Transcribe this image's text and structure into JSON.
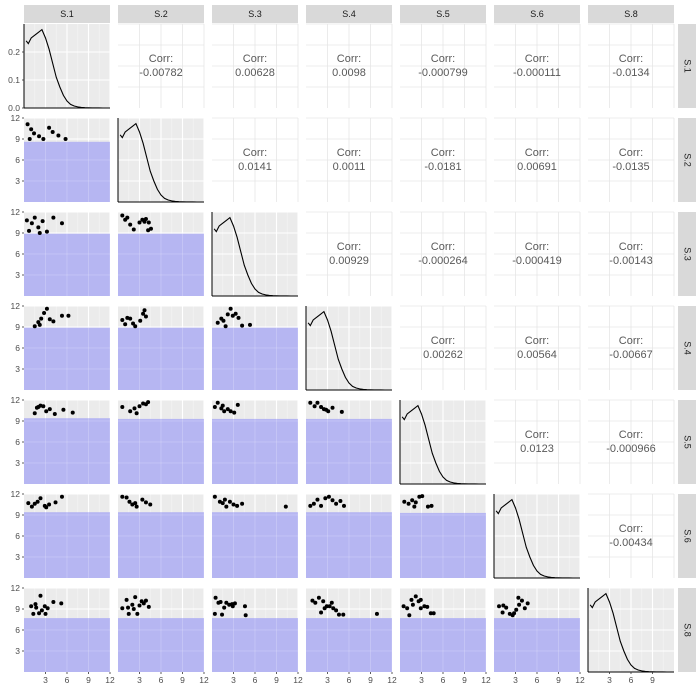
{
  "chart_data": {
    "type": "pairs",
    "variables": [
      "S.1",
      "S.2",
      "S.3",
      "S.4",
      "S.5",
      "S.6",
      "S.8"
    ],
    "density_y_ticks": [
      0.0,
      0.1,
      0.2
    ],
    "density_y_tick_labels": [
      "0.0",
      "0.1",
      "0.2"
    ],
    "scatter_y_ticks": [
      3,
      6,
      9,
      12
    ],
    "scatter_y_tick_labels": [
      "3",
      "6",
      "9",
      "12"
    ],
    "x_ticks": [
      3,
      6,
      9,
      12
    ],
    "x_tick_labels": [
      "3",
      "6",
      "9",
      "12"
    ],
    "last_col_x_ticks": [
      3,
      6,
      9
    ],
    "last_col_x_tick_labels": [
      "3",
      "6",
      "9"
    ],
    "xlim": [
      0,
      12
    ],
    "ylim": [
      0,
      12
    ],
    "corr_label": "Corr:",
    "correlations": [
      {
        "row": 0,
        "col": 1,
        "value": "-0.00782"
      },
      {
        "row": 0,
        "col": 2,
        "value": "0.00628"
      },
      {
        "row": 0,
        "col": 3,
        "value": "0.0098"
      },
      {
        "row": 0,
        "col": 4,
        "value": "-0.000799"
      },
      {
        "row": 0,
        "col": 5,
        "value": "-0.000111"
      },
      {
        "row": 0,
        "col": 6,
        "value": "-0.0134"
      },
      {
        "row": 1,
        "col": 2,
        "value": "0.0141"
      },
      {
        "row": 1,
        "col": 3,
        "value": "0.0011"
      },
      {
        "row": 1,
        "col": 4,
        "value": "-0.0181"
      },
      {
        "row": 1,
        "col": 5,
        "value": "0.00691"
      },
      {
        "row": 1,
        "col": 6,
        "value": "-0.0135"
      },
      {
        "row": 2,
        "col": 3,
        "value": "0.00929"
      },
      {
        "row": 2,
        "col": 4,
        "value": "-0.000264"
      },
      {
        "row": 2,
        "col": 5,
        "value": "-0.000419"
      },
      {
        "row": 2,
        "col": 6,
        "value": "-0.00143"
      },
      {
        "row": 3,
        "col": 4,
        "value": "0.00262"
      },
      {
        "row": 3,
        "col": 5,
        "value": "0.00564"
      },
      {
        "row": 3,
        "col": 6,
        "value": "-0.00667"
      },
      {
        "row": 4,
        "col": 5,
        "value": "0.0123"
      },
      {
        "row": 4,
        "col": 6,
        "value": "-0.000966"
      },
      {
        "row": 5,
        "col": 6,
        "value": "-0.00434"
      }
    ],
    "density_curve": {
      "x": [
        0.3,
        0.6,
        1.0,
        1.5,
        2.0,
        2.5,
        3.0,
        3.5,
        4.0,
        4.5,
        5.0,
        5.5,
        6.0,
        6.5,
        7.0,
        7.5,
        8.0,
        8.5,
        9.0,
        9.5,
        10.0,
        10.5,
        11.0
      ],
      "y": [
        0.24,
        0.23,
        0.25,
        0.26,
        0.27,
        0.28,
        0.25,
        0.21,
        0.16,
        0.11,
        0.075,
        0.045,
        0.025,
        0.013,
        0.007,
        0.004,
        0.002,
        0.001,
        0.0006,
        0.0003,
        0.0002,
        0.0001,
        0.0
      ],
      "ylim": [
        0,
        0.3
      ]
    },
    "fill_color": "#b3b3f2",
    "panel_bg": "#ebebeb",
    "strip_bg": "#d9d9d9",
    "point_color": "#000000",
    "scatter_panels": [
      {
        "row": 1,
        "col": 0,
        "fill_level": 8.6,
        "points": [
          [
            0.5,
            11.1
          ],
          [
            1.0,
            10.4
          ],
          [
            1.4,
            9.8
          ],
          [
            2.1,
            9.4
          ],
          [
            0.8,
            9.0
          ],
          [
            2.7,
            9.0
          ],
          [
            4.0,
            10.0
          ],
          [
            4.8,
            9.5
          ],
          [
            5.8,
            9.0
          ],
          [
            3.5,
            10.6
          ]
        ]
      },
      {
        "row": 2,
        "col": 0,
        "fill_level": 8.9,
        "points": [
          [
            0.4,
            10.8
          ],
          [
            1.1,
            10.4
          ],
          [
            1.5,
            11.2
          ],
          [
            2.0,
            9.8
          ],
          [
            2.6,
            10.7
          ],
          [
            3.2,
            9.2
          ],
          [
            4.1,
            11.2
          ],
          [
            5.3,
            10.4
          ],
          [
            2.2,
            9.0
          ],
          [
            0.7,
            9.3
          ]
        ]
      },
      {
        "row": 3,
        "col": 0,
        "fill_level": 8.9,
        "points": [
          [
            1.5,
            9.1
          ],
          [
            2.0,
            9.7
          ],
          [
            2.4,
            10.2
          ],
          [
            2.8,
            11.0
          ],
          [
            3.2,
            11.6
          ],
          [
            3.6,
            10.1
          ],
          [
            4.1,
            9.8
          ],
          [
            5.3,
            10.6
          ],
          [
            6.2,
            10.6
          ],
          [
            2.2,
            9.3
          ]
        ]
      },
      {
        "row": 4,
        "col": 0,
        "fill_level": 9.4,
        "points": [
          [
            1.5,
            10.1
          ],
          [
            1.8,
            10.9
          ],
          [
            2.3,
            11.2
          ],
          [
            2.7,
            11.1
          ],
          [
            3.1,
            10.4
          ],
          [
            4.3,
            10.0
          ],
          [
            5.5,
            10.6
          ],
          [
            6.8,
            10.2
          ],
          [
            3.6,
            10.7
          ],
          [
            2.0,
            11.0
          ]
        ]
      },
      {
        "row": 5,
        "col": 0,
        "fill_level": 9.4,
        "points": [
          [
            0.6,
            10.7
          ],
          [
            1.1,
            10.2
          ],
          [
            1.5,
            10.6
          ],
          [
            2.3,
            11.4
          ],
          [
            2.9,
            10.3
          ],
          [
            3.5,
            10.5
          ],
          [
            4.4,
            10.8
          ],
          [
            5.3,
            11.6
          ],
          [
            1.9,
            10.9
          ],
          [
            3.1,
            10.1
          ]
        ]
      },
      {
        "row": 6,
        "col": 0,
        "fill_level": 7.7,
        "points": [
          [
            1.0,
            9.4
          ],
          [
            1.3,
            8.3
          ],
          [
            1.7,
            9.2
          ],
          [
            2.1,
            8.4
          ],
          [
            2.5,
            8.8
          ],
          [
            2.9,
            9.4
          ],
          [
            3.3,
            9.1
          ],
          [
            4.1,
            10.0
          ],
          [
            5.2,
            9.8
          ],
          [
            2.3,
            10.9
          ],
          [
            1.6,
            9.7
          ],
          [
            3.0,
            8.3
          ]
        ]
      },
      {
        "row": 2,
        "col": 1,
        "fill_level": 8.9,
        "points": [
          [
            0.6,
            11.5
          ],
          [
            1.0,
            10.9
          ],
          [
            1.3,
            11.2
          ],
          [
            1.7,
            10.2
          ],
          [
            2.2,
            9.5
          ],
          [
            3.0,
            10.5
          ],
          [
            3.4,
            10.9
          ],
          [
            3.9,
            11.0
          ],
          [
            4.3,
            10.5
          ],
          [
            4.6,
            9.6
          ],
          [
            4.2,
            9.4
          ],
          [
            3.7,
            10.6
          ]
        ]
      },
      {
        "row": 3,
        "col": 1,
        "fill_level": 8.9,
        "points": [
          [
            0.6,
            10.0
          ],
          [
            1.0,
            9.4
          ],
          [
            1.3,
            10.3
          ],
          [
            1.7,
            10.2
          ],
          [
            2.4,
            9.1
          ],
          [
            3.1,
            9.9
          ],
          [
            3.5,
            10.9
          ],
          [
            3.7,
            11.4
          ],
          [
            3.9,
            10.5
          ],
          [
            2.1,
            9.5
          ]
        ]
      },
      {
        "row": 4,
        "col": 1,
        "fill_level": 9.3,
        "points": [
          [
            0.6,
            11.0
          ],
          [
            1.7,
            10.4
          ],
          [
            2.3,
            10.8
          ],
          [
            3.0,
            11.1
          ],
          [
            3.5,
            11.5
          ],
          [
            3.9,
            11.4
          ],
          [
            2.6,
            10.1
          ],
          [
            4.2,
            11.7
          ]
        ]
      },
      {
        "row": 5,
        "col": 1,
        "fill_level": 9.4,
        "points": [
          [
            0.6,
            11.6
          ],
          [
            1.2,
            11.5
          ],
          [
            1.6,
            10.9
          ],
          [
            2.0,
            10.5
          ],
          [
            2.6,
            10.2
          ],
          [
            3.4,
            11.2
          ],
          [
            3.9,
            10.8
          ],
          [
            4.5,
            10.5
          ],
          [
            2.4,
            10.7
          ]
        ]
      },
      {
        "row": 6,
        "col": 1,
        "fill_level": 7.7,
        "points": [
          [
            0.6,
            9.1
          ],
          [
            1.2,
            10.3
          ],
          [
            1.5,
            8.3
          ],
          [
            2.0,
            9.6
          ],
          [
            2.4,
            10.7
          ],
          [
            2.7,
            8.3
          ],
          [
            3.0,
            9.5
          ],
          [
            3.3,
            10.1
          ],
          [
            3.6,
            9.8
          ],
          [
            3.9,
            10.2
          ],
          [
            4.3,
            9.3
          ],
          [
            2.2,
            9.0
          ],
          [
            1.4,
            9.2
          ]
        ]
      },
      {
        "row": 3,
        "col": 2,
        "fill_level": 8.9,
        "points": [
          [
            0.8,
            9.6
          ],
          [
            1.3,
            10.2
          ],
          [
            1.6,
            9.9
          ],
          [
            2.2,
            10.8
          ],
          [
            2.6,
            11.6
          ],
          [
            2.9,
            10.6
          ],
          [
            3.3,
            10.9
          ],
          [
            3.7,
            10.3
          ],
          [
            4.2,
            9.2
          ],
          [
            5.3,
            9.3
          ],
          [
            1.9,
            9.1
          ]
        ]
      },
      {
        "row": 4,
        "col": 2,
        "fill_level": 9.3,
        "points": [
          [
            0.4,
            11.0
          ],
          [
            0.8,
            11.6
          ],
          [
            1.3,
            10.8
          ],
          [
            1.7,
            10.4
          ],
          [
            2.2,
            10.7
          ],
          [
            2.6,
            10.4
          ],
          [
            3.1,
            10.2
          ],
          [
            3.6,
            11.3
          ],
          [
            1.5,
            11.2
          ]
        ]
      },
      {
        "row": 5,
        "col": 2,
        "fill_level": 9.4,
        "points": [
          [
            0.4,
            11.6
          ],
          [
            1.1,
            10.9
          ],
          [
            1.5,
            10.7
          ],
          [
            2.0,
            10.2
          ],
          [
            2.5,
            10.9
          ],
          [
            3.0,
            10.5
          ],
          [
            3.5,
            10.3
          ],
          [
            4.2,
            10.6
          ],
          [
            10.3,
            10.2
          ],
          [
            1.8,
            11.2
          ]
        ]
      },
      {
        "row": 6,
        "col": 2,
        "fill_level": 7.7,
        "points": [
          [
            0.5,
            10.6
          ],
          [
            0.9,
            9.9
          ],
          [
            1.2,
            10.0
          ],
          [
            1.7,
            9.2
          ],
          [
            2.0,
            9.9
          ],
          [
            2.4,
            9.6
          ],
          [
            2.9,
            9.4
          ],
          [
            3.2,
            9.8
          ],
          [
            4.6,
            9.4
          ],
          [
            4.7,
            8.1
          ],
          [
            1.4,
            8.2
          ],
          [
            0.4,
            8.3
          ],
          [
            2.8,
            9.7
          ]
        ]
      },
      {
        "row": 4,
        "col": 3,
        "fill_level": 9.3,
        "points": [
          [
            0.6,
            11.6
          ],
          [
            1.2,
            11.1
          ],
          [
            1.6,
            11.6
          ],
          [
            2.1,
            11.0
          ],
          [
            2.5,
            10.7
          ],
          [
            3.1,
            10.4
          ],
          [
            3.7,
            10.9
          ],
          [
            5.0,
            10.3
          ],
          [
            2.8,
            10.6
          ]
        ]
      },
      {
        "row": 5,
        "col": 3,
        "fill_level": 9.4,
        "points": [
          [
            0.6,
            10.3
          ],
          [
            1.1,
            10.6
          ],
          [
            1.6,
            11.2
          ],
          [
            2.1,
            10.3
          ],
          [
            2.7,
            11.4
          ],
          [
            3.2,
            11.6
          ],
          [
            3.7,
            11.1
          ],
          [
            4.2,
            10.6
          ],
          [
            4.8,
            11.0
          ],
          [
            5.3,
            10.3
          ]
        ]
      },
      {
        "row": 6,
        "col": 3,
        "fill_level": 7.7,
        "points": [
          [
            0.9,
            10.2
          ],
          [
            1.3,
            9.9
          ],
          [
            1.8,
            10.6
          ],
          [
            2.4,
            10.1
          ],
          [
            2.9,
            9.4
          ],
          [
            3.3,
            9.4
          ],
          [
            3.8,
            9.1
          ],
          [
            4.2,
            8.8
          ],
          [
            4.6,
            8.2
          ],
          [
            5.2,
            8.2
          ],
          [
            9.9,
            8.3
          ],
          [
            2.1,
            8.5
          ],
          [
            3.6,
            9.9
          ],
          [
            2.6,
            9.1
          ]
        ]
      },
      {
        "row": 5,
        "col": 4,
        "fill_level": 9.3,
        "points": [
          [
            0.6,
            10.9
          ],
          [
            1.2,
            10.6
          ],
          [
            1.7,
            11.1
          ],
          [
            2.2,
            10.8
          ],
          [
            2.7,
            11.6
          ],
          [
            3.1,
            11.7
          ],
          [
            3.9,
            10.2
          ],
          [
            4.4,
            10.3
          ],
          [
            2.0,
            10.2
          ]
        ]
      },
      {
        "row": 6,
        "col": 4,
        "fill_level": 7.7,
        "points": [
          [
            0.5,
            9.4
          ],
          [
            1.0,
            9.1
          ],
          [
            1.3,
            8.1
          ],
          [
            1.8,
            9.6
          ],
          [
            2.2,
            10.8
          ],
          [
            2.6,
            10.1
          ],
          [
            2.9,
            10.3
          ],
          [
            3.4,
            9.4
          ],
          [
            3.8,
            9.3
          ],
          [
            4.3,
            8.4
          ],
          [
            4.7,
            8.4
          ],
          [
            1.6,
            10.3
          ],
          [
            2.9,
            9.1
          ]
        ]
      },
      {
        "row": 6,
        "col": 5,
        "fill_level": 7.7,
        "points": [
          [
            0.7,
            9.4
          ],
          [
            1.2,
            8.5
          ],
          [
            1.7,
            9.2
          ],
          [
            2.2,
            8.3
          ],
          [
            2.6,
            8.1
          ],
          [
            3.1,
            8.9
          ],
          [
            3.5,
            9.6
          ],
          [
            3.9,
            10.2
          ],
          [
            4.3,
            9.1
          ],
          [
            4.7,
            9.8
          ],
          [
            1.3,
            9.5
          ],
          [
            3.4,
            10.6
          ],
          [
            2.8,
            8.4
          ]
        ]
      }
    ]
  }
}
